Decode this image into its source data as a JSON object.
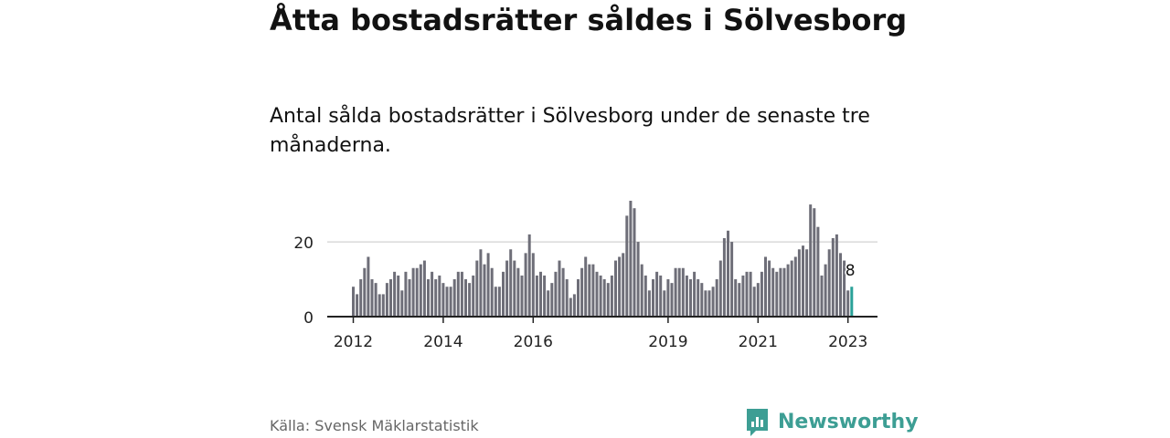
{
  "title": "Åtta bostadsrätter såldes i Sölvesborg",
  "subtitle": "Antal sålda bostadsrätter i Sölvesborg under de senaste tre månaderna.",
  "source": "Källa: Svensk Mäklarstatistik",
  "brand": "Newsworthy",
  "colors": {
    "bar": "#6e6e78",
    "highlight": "#2aa198",
    "brand": "#3d9e94",
    "grid": "#d9d9d9",
    "axis": "#222222"
  },
  "chart_data": {
    "type": "bar",
    "start": "2012-01",
    "values": [
      8,
      6,
      10,
      13,
      16,
      10,
      9,
      6,
      6,
      9,
      10,
      12,
      11,
      7,
      12,
      10,
      13,
      13,
      14,
      15,
      10,
      12,
      10,
      11,
      9,
      8,
      8,
      10,
      12,
      12,
      10,
      9,
      11,
      15,
      18,
      14,
      17,
      13,
      8,
      8,
      12,
      15,
      18,
      15,
      13,
      11,
      17,
      22,
      17,
      11,
      12,
      11,
      7,
      9,
      12,
      15,
      13,
      10,
      5,
      6,
      10,
      13,
      16,
      14,
      14,
      12,
      11,
      10,
      9,
      11,
      15,
      16,
      17,
      27,
      31,
      29,
      20,
      14,
      11,
      7,
      10,
      12,
      11,
      7,
      10,
      9,
      13,
      13,
      13,
      11,
      10,
      12,
      10,
      9,
      7,
      7,
      8,
      10,
      15,
      21,
      23,
      20,
      10,
      9,
      11,
      12,
      12,
      8,
      9,
      12,
      16,
      15,
      13,
      12,
      13,
      13,
      14,
      15,
      16,
      18,
      19,
      18,
      30,
      29,
      24,
      11,
      14,
      18,
      21,
      22,
      17,
      15,
      7,
      8
    ],
    "highlight_last": 1,
    "last_label": "8",
    "ylim": [
      0,
      31
    ],
    "yticks": [
      0,
      20
    ],
    "ytick_labels": [
      "0",
      "20"
    ],
    "xticks": [
      {
        "index": 0,
        "label": "2012"
      },
      {
        "index": 24,
        "label": "2014"
      },
      {
        "index": 48,
        "label": "2016"
      },
      {
        "index": 84,
        "label": "2019"
      },
      {
        "index": 108,
        "label": "2021"
      },
      {
        "index": 132,
        "label": "2023"
      }
    ],
    "grid": true,
    "xlabel": "",
    "ylabel": ""
  }
}
